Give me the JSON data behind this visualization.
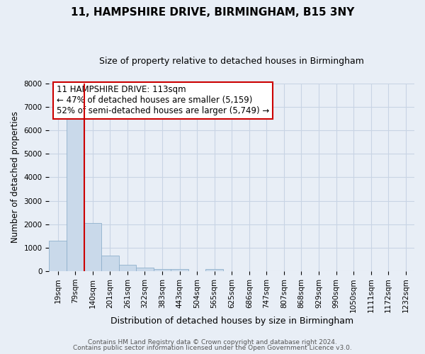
{
  "title": "11, HAMPSHIRE DRIVE, BIRMINGHAM, B15 3NY",
  "subtitle": "Size of property relative to detached houses in Birmingham",
  "xlabel": "Distribution of detached houses by size in Birmingham",
  "ylabel": "Number of detached properties",
  "bar_labels": [
    "19sqm",
    "79sqm",
    "140sqm",
    "201sqm",
    "261sqm",
    "322sqm",
    "383sqm",
    "443sqm",
    "504sqm",
    "565sqm",
    "625sqm",
    "686sqm",
    "747sqm",
    "807sqm",
    "868sqm",
    "929sqm",
    "990sqm",
    "1050sqm",
    "1111sqm",
    "1172sqm",
    "1232sqm"
  ],
  "bar_values": [
    1300,
    6600,
    2050,
    650,
    285,
    140,
    95,
    90,
    0,
    90,
    0,
    0,
    0,
    0,
    0,
    0,
    0,
    0,
    0,
    0,
    0
  ],
  "bar_color": "#c9d9ea",
  "bar_edgecolor": "#8fb0cc",
  "vline_color": "#cc0000",
  "ylim": [
    0,
    8000
  ],
  "yticks": [
    0,
    1000,
    2000,
    3000,
    4000,
    5000,
    6000,
    7000,
    8000
  ],
  "annotation_text": "11 HAMPSHIRE DRIVE: 113sqm\n← 47% of detached houses are smaller (5,159)\n52% of semi-detached houses are larger (5,749) →",
  "annotation_box_color": "white",
  "annotation_box_edgecolor": "#cc0000",
  "footer1": "Contains HM Land Registry data © Crown copyright and database right 2024.",
  "footer2": "Contains public sector information licensed under the Open Government Licence v3.0.",
  "grid_color": "#c8d4e4",
  "background_color": "#e8eef6",
  "title_fontsize": 11,
  "subtitle_fontsize": 9,
  "xlabel_fontsize": 9,
  "ylabel_fontsize": 8.5,
  "tick_fontsize": 7.5,
  "annot_fontsize": 8.5,
  "footer_fontsize": 6.5
}
